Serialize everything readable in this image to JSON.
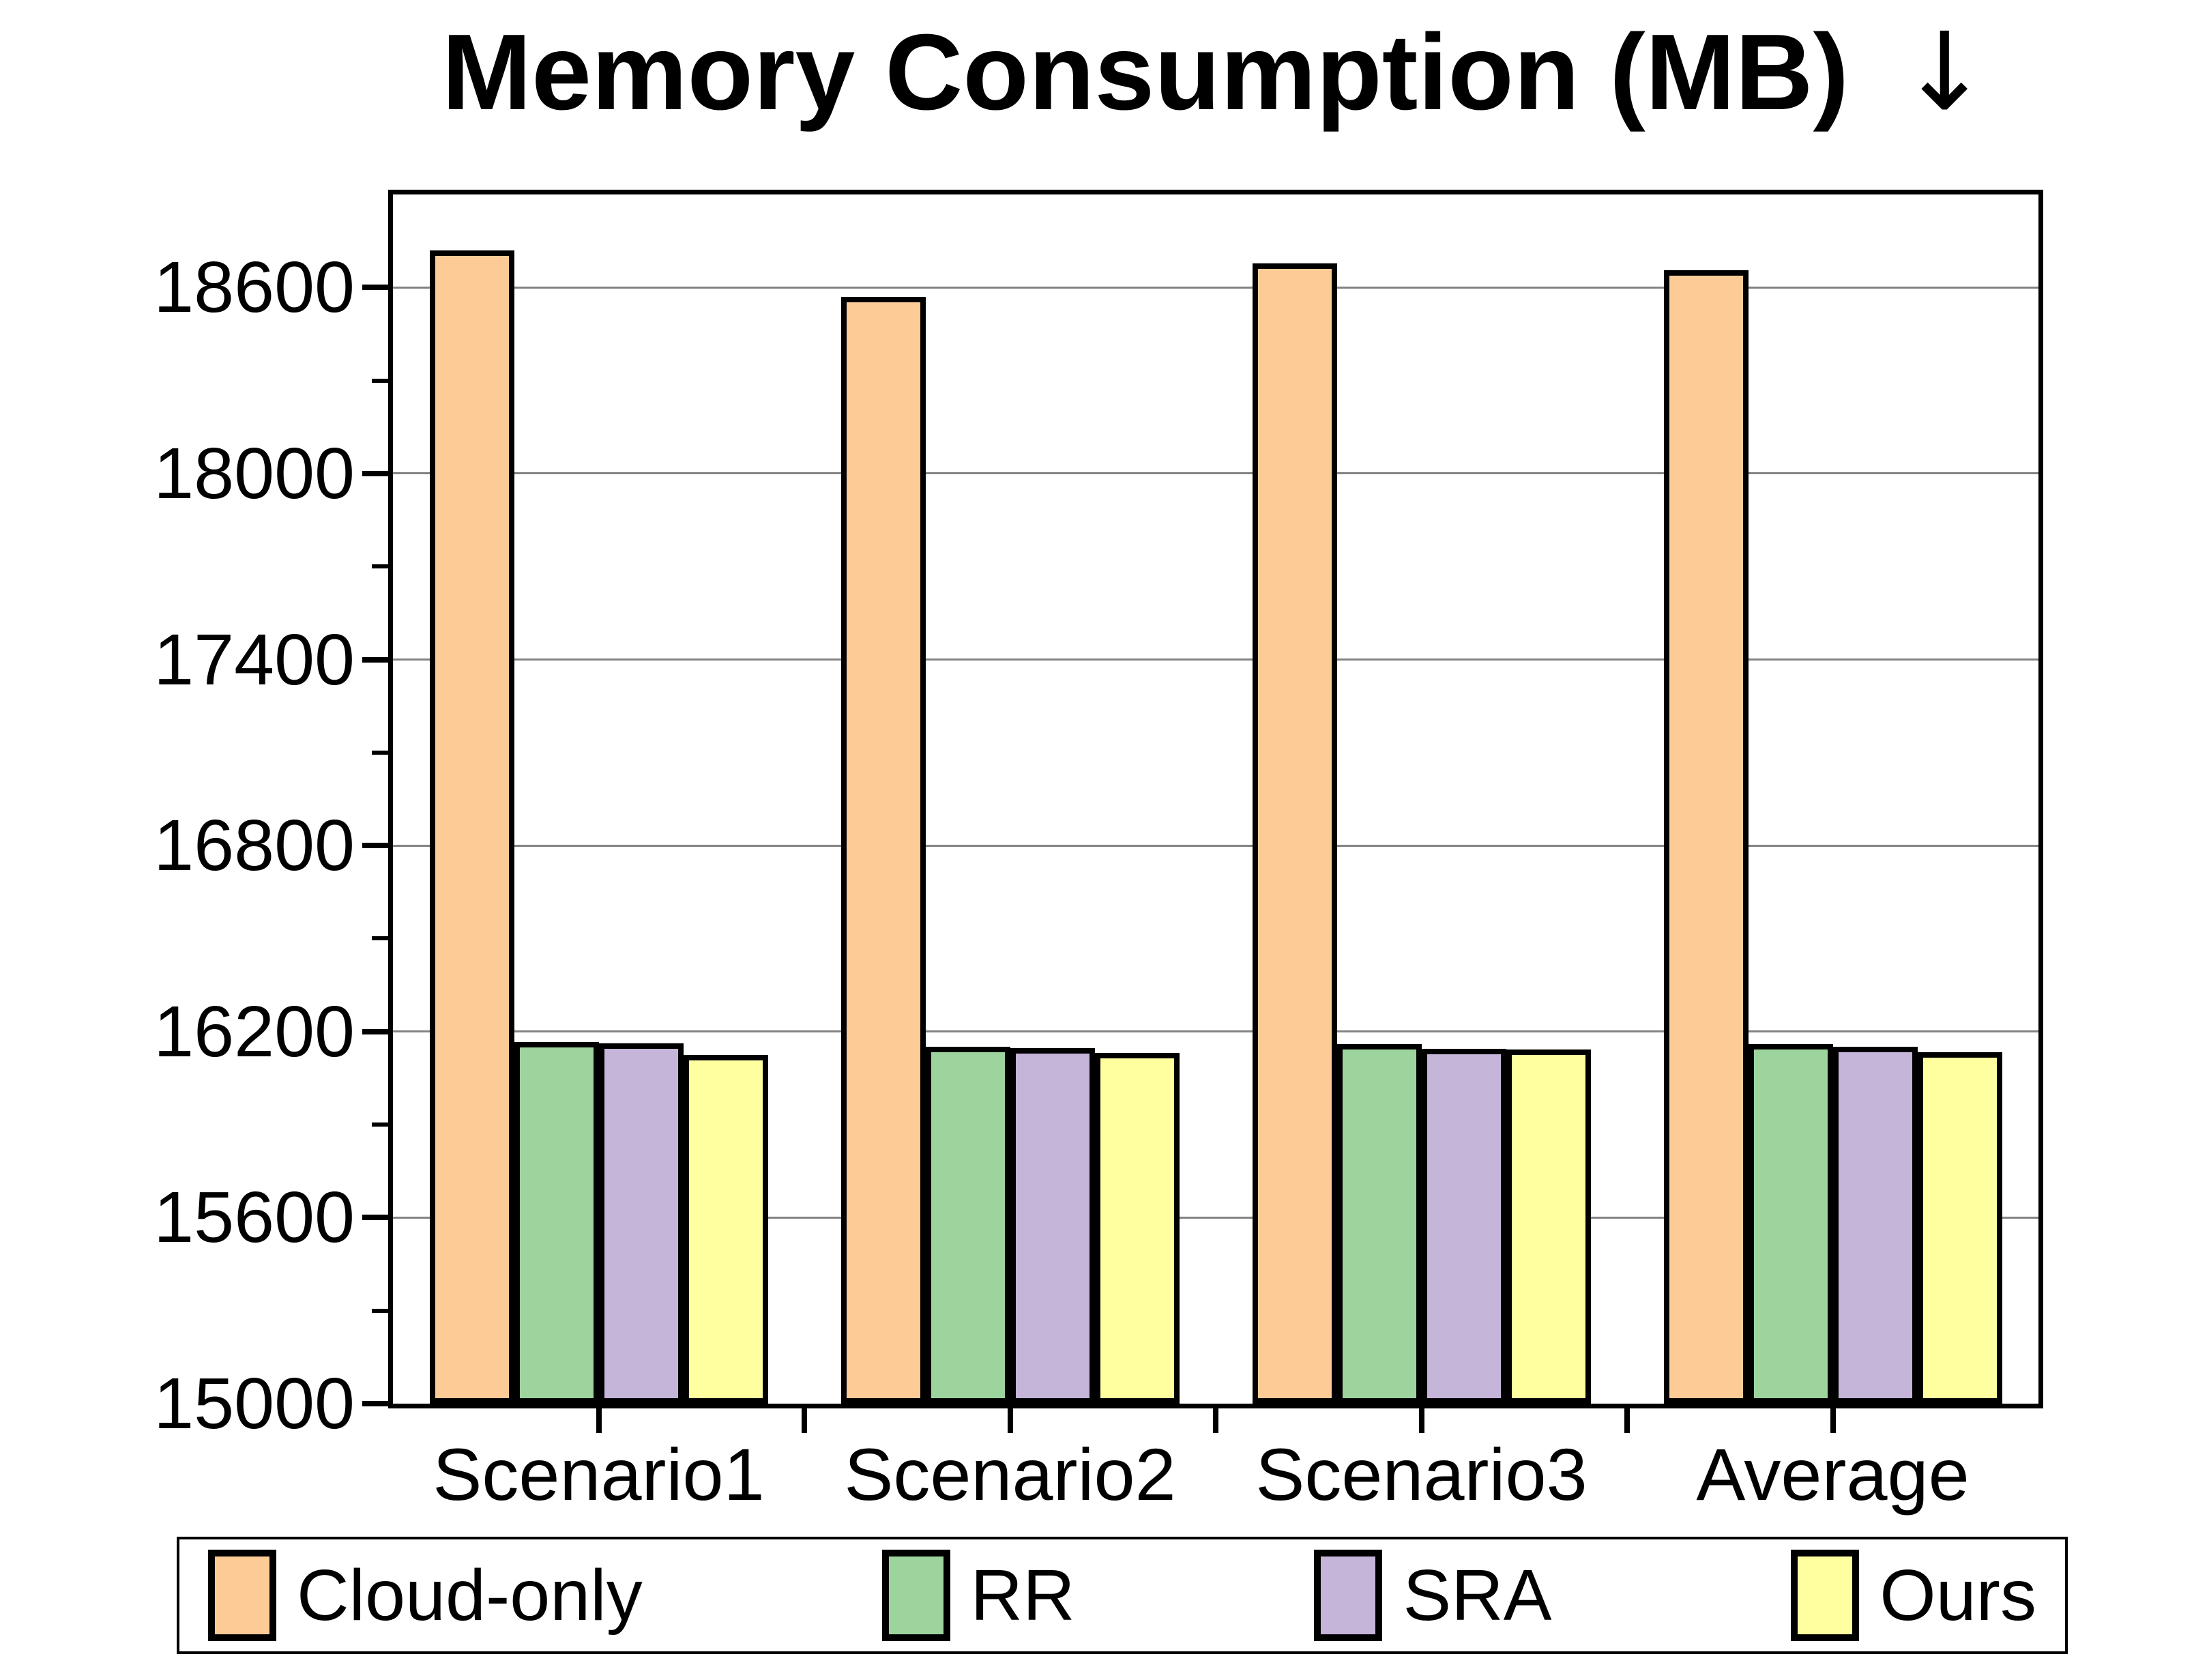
{
  "chart_data": {
    "type": "bar",
    "title": "Memory Consumption (MB) ↓",
    "title_main": "Memory Consumption (MB)",
    "title_arrow": "↓",
    "categories": [
      "Scenario1",
      "Scenario2",
      "Scenario3",
      "Average"
    ],
    "series": [
      {
        "name": "Cloud-only",
        "color": "#FDCB96",
        "values": [
          18710,
          18560,
          18670,
          18647
        ]
      },
      {
        "name": "RR",
        "color": "#9DD49D",
        "values": [
          16158,
          16143,
          16151,
          16151
        ]
      },
      {
        "name": "SRA",
        "color": "#C5B5D8",
        "values": [
          16154,
          16138,
          16136,
          16143
        ]
      },
      {
        "name": "Ours",
        "color": "#FFFFA0",
        "values": [
          16116,
          16123,
          16133,
          16124
        ]
      }
    ],
    "xlabel": "",
    "ylabel": "",
    "ylim": [
      15000,
      18900
    ],
    "yticks": [
      15000,
      15600,
      16200,
      16800,
      17400,
      18000,
      18600
    ],
    "minor_tick_step": 300,
    "grid": "horizontal-major-gray",
    "gridline_color": "#838383",
    "bar_outline_color": "#000000",
    "legend_position": "bottom",
    "legend_entries": [
      "Cloud-only",
      "RR",
      "SRA",
      "Ours"
    ]
  }
}
